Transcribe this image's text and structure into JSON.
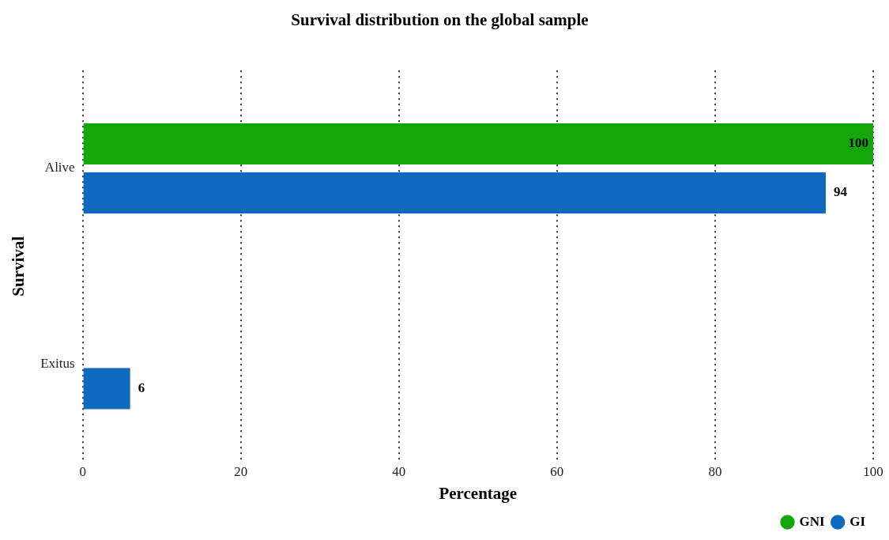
{
  "chart_data": {
    "type": "bar",
    "orientation": "horizontal",
    "title": "Survival distribution on the global sample",
    "xlabel": "Percentage",
    "ylabel": "Survival",
    "categories": [
      "Alive",
      "Exitus"
    ],
    "series": [
      {
        "name": "GNI",
        "color": "#13a70b",
        "values": [
          100,
          null
        ]
      },
      {
        "name": "GI",
        "color": "#0f69be",
        "values": [
          94,
          6
        ]
      }
    ],
    "xlim": [
      0,
      100
    ],
    "xticks": [
      0,
      20,
      40,
      60,
      80,
      100
    ],
    "grid": "x",
    "legend": "bottom right",
    "data_labels": true
  }
}
